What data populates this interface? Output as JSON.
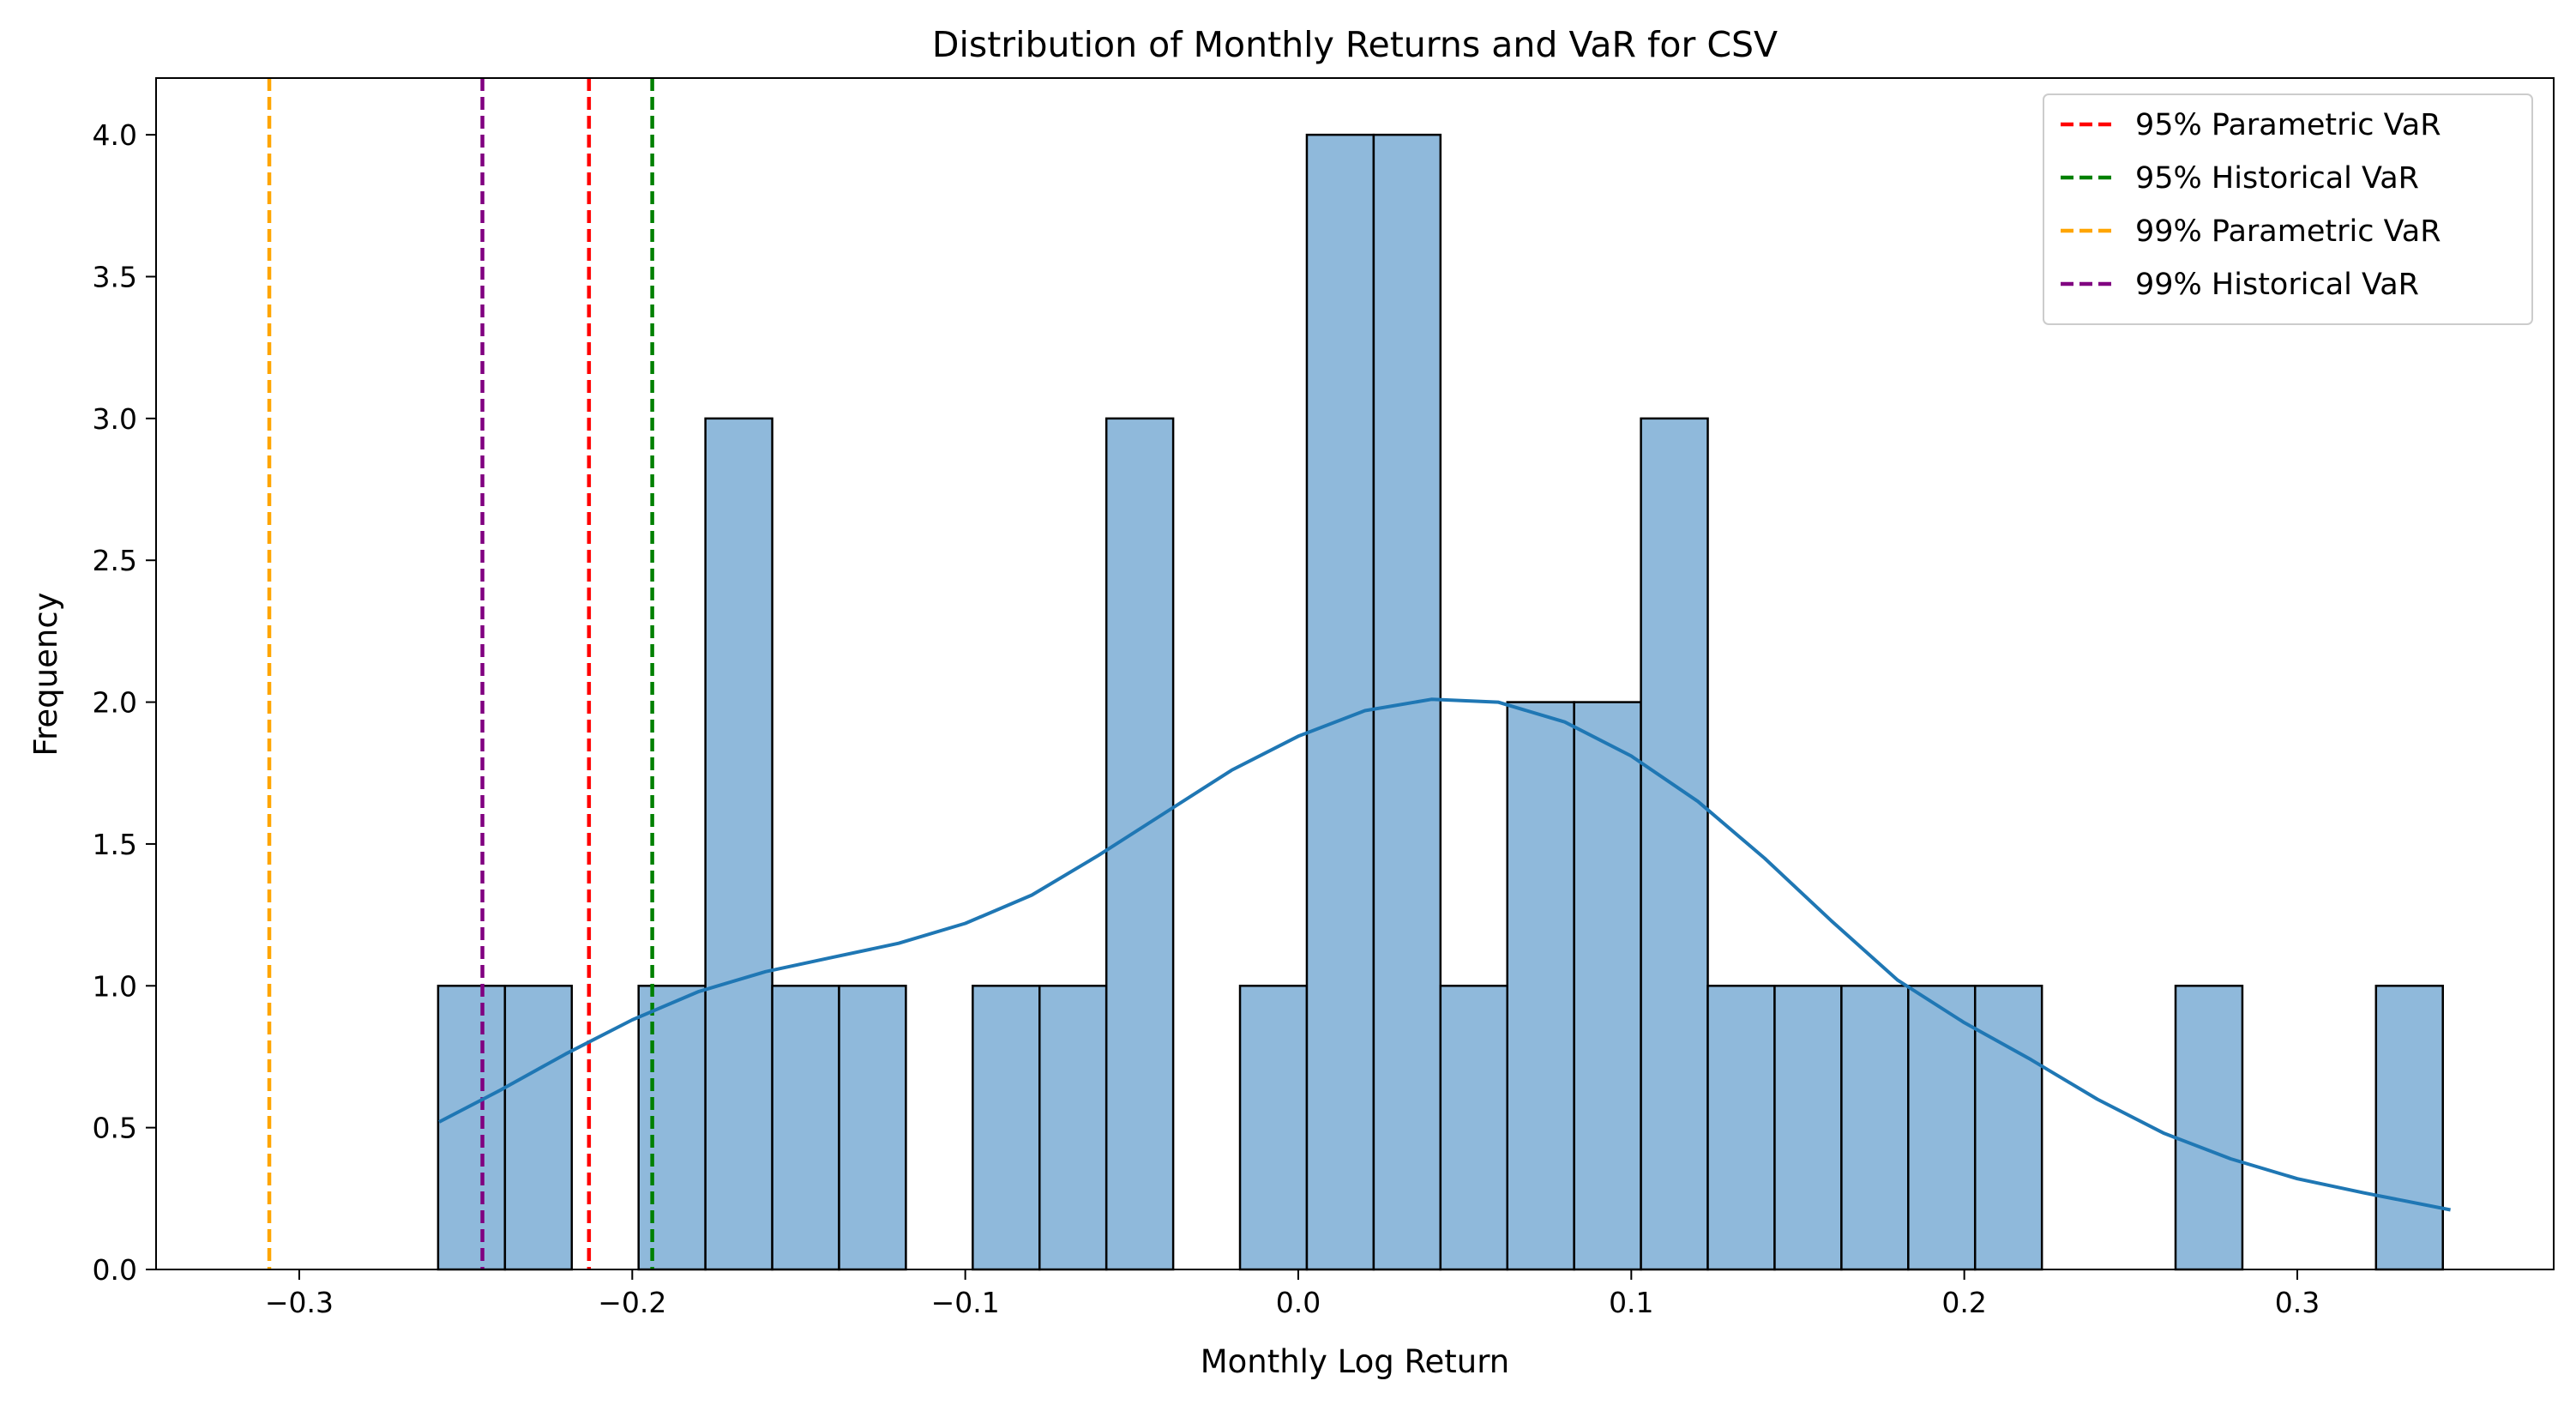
{
  "chart_data": {
    "type": "bar",
    "title": "Distribution of Monthly Returns and VaR for CSV",
    "xlabel": "Monthly Log Return",
    "ylabel": "Frequency",
    "xlim": [
      -0.343,
      0.377
    ],
    "ylim": [
      0,
      4.2
    ],
    "x_ticks": [
      -0.3,
      -0.2,
      -0.1,
      0.0,
      0.1,
      0.2,
      0.3
    ],
    "x_tick_labels": [
      "−0.3",
      "−0.2",
      "−0.1",
      "0.0",
      "0.1",
      "0.2",
      "0.3"
    ],
    "y_ticks": [
      0,
      0.5,
      1,
      1.5,
      2,
      2.5,
      3,
      3.5,
      4
    ],
    "y_tick_labels": [
      "0.0",
      "0.5",
      "1.0",
      "1.5",
      "2.0",
      "2.5",
      "3.0",
      "3.5",
      "4.0"
    ],
    "grid": false,
    "histogram": {
      "bin_start": -0.2583,
      "bin_width": 0.020067,
      "counts": [
        1,
        1,
        0,
        1,
        3,
        1,
        1,
        0,
        1,
        1,
        3,
        0,
        1,
        4,
        4,
        1,
        2,
        2,
        3,
        1,
        1,
        1,
        1,
        1,
        0,
        0,
        1,
        0,
        0,
        1
      ],
      "fill_color": "#8fb9db",
      "edge_color": "#000000"
    },
    "kde": {
      "color": "#1f77b4",
      "points": [
        [
          -0.258,
          0.52
        ],
        [
          -0.24,
          0.63
        ],
        [
          -0.22,
          0.76
        ],
        [
          -0.2,
          0.88
        ],
        [
          -0.18,
          0.98
        ],
        [
          -0.16,
          1.05
        ],
        [
          -0.14,
          1.1
        ],
        [
          -0.12,
          1.15
        ],
        [
          -0.1,
          1.22
        ],
        [
          -0.08,
          1.32
        ],
        [
          -0.06,
          1.46
        ],
        [
          -0.04,
          1.61
        ],
        [
          -0.02,
          1.76
        ],
        [
          0.0,
          1.88
        ],
        [
          0.02,
          1.97
        ],
        [
          0.04,
          2.01
        ],
        [
          0.06,
          2.0
        ],
        [
          0.08,
          1.93
        ],
        [
          0.1,
          1.81
        ],
        [
          0.12,
          1.65
        ],
        [
          0.14,
          1.45
        ],
        [
          0.16,
          1.23
        ],
        [
          0.18,
          1.02
        ],
        [
          0.2,
          0.87
        ],
        [
          0.22,
          0.74
        ],
        [
          0.24,
          0.6
        ],
        [
          0.26,
          0.48
        ],
        [
          0.28,
          0.39
        ],
        [
          0.3,
          0.32
        ],
        [
          0.32,
          0.27
        ],
        [
          0.346,
          0.21
        ]
      ]
    },
    "var_lines": [
      {
        "name": "95% Parametric VaR",
        "x": -0.213,
        "color": "#ff0000"
      },
      {
        "name": "95% Historical VaR",
        "x": -0.194,
        "color": "#008000"
      },
      {
        "name": "99% Parametric VaR",
        "x": -0.309,
        "color": "#ffa500"
      },
      {
        "name": "99% Historical VaR",
        "x": -0.245,
        "color": "#800080"
      }
    ],
    "legend_position": "top-right"
  }
}
